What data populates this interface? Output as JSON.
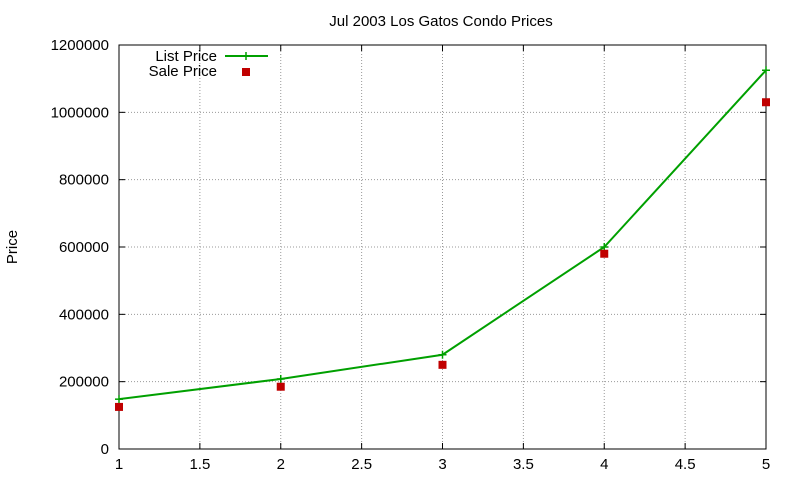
{
  "chart_data": {
    "type": "line",
    "title": "Jul 2003 Los Gatos Condo Prices",
    "xlabel": "",
    "ylabel": "Price",
    "xlim": [
      1,
      5
    ],
    "ylim": [
      0,
      1200000
    ],
    "x_ticks": [
      "1",
      "1.5",
      "2",
      "2.5",
      "3",
      "3.5",
      "4",
      "4.5",
      "5"
    ],
    "x_tick_values": [
      1,
      1.5,
      2,
      2.5,
      3,
      3.5,
      4,
      4.5,
      5
    ],
    "y_ticks": [
      "0",
      "200000",
      "400000",
      "600000",
      "800000",
      "1000000",
      "1200000"
    ],
    "y_tick_values": [
      0,
      200000,
      400000,
      600000,
      800000,
      1000000,
      1200000
    ],
    "grid": true,
    "legend_position": "top-left",
    "x": [
      1,
      2,
      3,
      4,
      5
    ],
    "series": [
      {
        "name": "List Price",
        "style": "line-points",
        "color": "#00a000",
        "values": [
          148000,
          208000,
          280000,
          600000,
          1125000
        ]
      },
      {
        "name": "Sale Price",
        "style": "points",
        "color": "#c00000",
        "values": [
          125000,
          185000,
          250000,
          580000,
          1030000
        ]
      }
    ]
  }
}
